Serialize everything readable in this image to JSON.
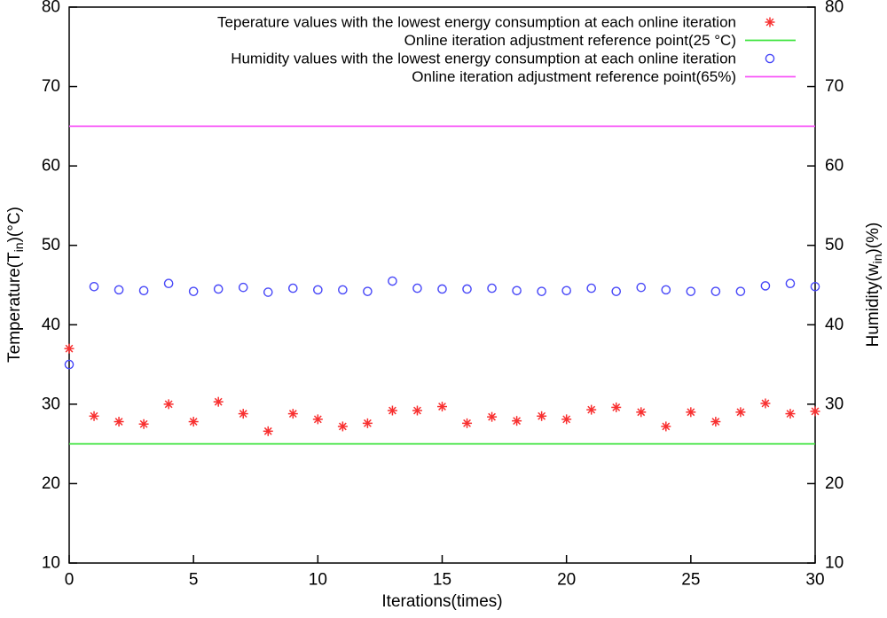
{
  "chart_data": {
    "type": "scatter",
    "title": "",
    "xlabel": "Iterations(times)",
    "ylabel_left": {
      "pre": "Temperature(T",
      "sub": "in",
      "post": ")(°C)"
    },
    "ylabel_right": {
      "pre": "Humidity(w",
      "sub": "in",
      "post": ")(%)"
    },
    "xlim": [
      0,
      30
    ],
    "ylim_left": [
      10,
      80
    ],
    "ylim_right": [
      10,
      80
    ],
    "x_ticks": [
      0,
      5,
      10,
      15,
      20,
      25,
      30
    ],
    "y_ticks_left": [
      10,
      20,
      30,
      40,
      50,
      60,
      70,
      80
    ],
    "y_ticks_right": [
      10,
      20,
      30,
      40,
      50,
      60,
      70,
      80
    ],
    "grid": false,
    "legend_position": "inside-top-right",
    "colors": {
      "temperature": "#f83030",
      "humidity": "#4848f8",
      "ref25": "#3fe43f",
      "ref65": "#f857f8",
      "axis": "#000000"
    },
    "series": [
      {
        "name": "Teperature values with the lowest energy consumption at each online iteration",
        "type": "points",
        "marker": "asterisk",
        "color_key": "temperature",
        "axis": "left",
        "x": [
          0,
          1,
          2,
          3,
          4,
          5,
          6,
          7,
          8,
          9,
          10,
          11,
          12,
          13,
          14,
          15,
          16,
          17,
          18,
          19,
          20,
          21,
          22,
          23,
          24,
          25,
          26,
          27,
          28,
          29,
          30
        ],
        "y": [
          37.0,
          28.5,
          27.8,
          27.5,
          30.0,
          27.8,
          30.3,
          28.8,
          26.6,
          28.8,
          28.1,
          27.2,
          27.6,
          29.2,
          29.2,
          29.7,
          27.6,
          28.4,
          27.9,
          28.5,
          28.1,
          29.3,
          29.6,
          29.0,
          27.2,
          29.0,
          27.8,
          29.0,
          30.1,
          28.8,
          29.1
        ]
      },
      {
        "name": "Online iteration adjustment reference point(25 °C)",
        "type": "hline",
        "color_key": "ref25",
        "value": 25
      },
      {
        "name": "Humidity values with the lowest energy consumption at each online iteration",
        "type": "points",
        "marker": "circle",
        "color_key": "humidity",
        "axis": "right",
        "x": [
          0,
          1,
          2,
          3,
          4,
          5,
          6,
          7,
          8,
          9,
          10,
          11,
          12,
          13,
          14,
          15,
          16,
          17,
          18,
          19,
          20,
          21,
          22,
          23,
          24,
          25,
          26,
          27,
          28,
          29,
          30
        ],
        "y": [
          35.0,
          44.8,
          44.4,
          44.3,
          45.2,
          44.2,
          44.5,
          44.7,
          44.1,
          44.6,
          44.4,
          44.4,
          44.2,
          45.5,
          44.6,
          44.5,
          44.5,
          44.6,
          44.3,
          44.2,
          44.3,
          44.6,
          44.2,
          44.7,
          44.4,
          44.2,
          44.2,
          44.2,
          44.9,
          45.2,
          44.8
        ]
      },
      {
        "name": "Online iteration adjustment reference point(65%)",
        "type": "hline",
        "color_key": "ref65",
        "value": 65
      }
    ]
  }
}
